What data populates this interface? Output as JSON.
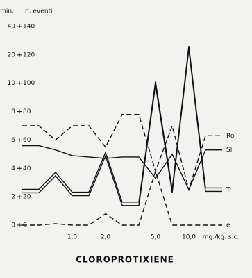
{
  "chart_data": {
    "type": "line",
    "title": "CLOROPROTIXIENE",
    "ylabel": "n. eventi",
    "y2label": "min.",
    "xlabel": "mg./kg. s.c.",
    "categories": [
      null,
      null,
      null,
      "1,0",
      null,
      "2,0",
      null,
      null,
      "5,0",
      null,
      "10,0",
      null,
      null
    ],
    "ylim": [
      0,
      140
    ],
    "yticks": [
      0,
      20,
      40,
      60,
      80,
      100,
      120,
      140
    ],
    "y2ticks": [
      0,
      2,
      4,
      6,
      8,
      10,
      20,
      40
    ],
    "series": [
      {
        "name": "Ro",
        "color": "#111111",
        "style": "dashed",
        "values": [
          70,
          70,
          60,
          70,
          70,
          55,
          78,
          78,
          38,
          70,
          25,
          63,
          63
        ]
      },
      {
        "name": "Sl",
        "color": "#111111",
        "style": "solid",
        "values": [
          56,
          56,
          53,
          49,
          48,
          47,
          48,
          48,
          33,
          50,
          25,
          53,
          53
        ]
      },
      {
        "name": "Tr",
        "color": "#111111",
        "style": "double",
        "values": [
          24,
          24,
          36,
          22,
          22,
          50,
          15,
          15,
          100,
          24,
          125,
          25,
          25
        ]
      },
      {
        "name": "e",
        "color": "#111111",
        "style": "dashed",
        "values": [
          0,
          0,
          1,
          0,
          0,
          8,
          0,
          0,
          38,
          0,
          0,
          0,
          0
        ]
      }
    ]
  }
}
